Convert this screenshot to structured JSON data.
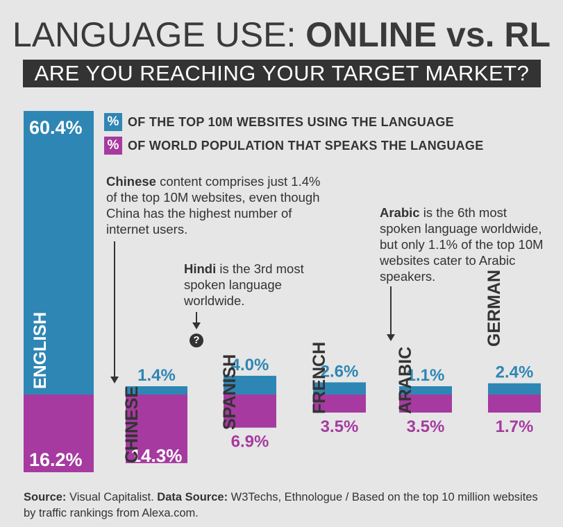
{
  "header": {
    "title_light": "LANGUAGE USE:",
    "title_bold": "ONLINE vs. RL",
    "subtitle": "ARE YOU REACHING YOUR TARGET MARKET?"
  },
  "legend": {
    "items": [
      {
        "symbol": "%",
        "text": "OF THE TOP 10M WEBSITES USING THE LANGUAGE",
        "color": "#2e86b4"
      },
      {
        "symbol": "%",
        "text": "OF WORLD POPULATION THAT SPEAKS THE LANGUAGE",
        "color": "#a63aa0"
      }
    ]
  },
  "notes": {
    "chinese": {
      "bold": "Chinese",
      "text": " content comprises just 1.4% of the top 10M websites, even though China has the highest number of internet users."
    },
    "hindi": {
      "bold": "Hindi",
      "text": " is the 3rd most spoken language worldwide."
    },
    "arabic": {
      "bold": "Arabic",
      "text": " is the 6th most spoken language worldwide, but only 1.1% of the top 10M websites cater to Arabic speakers."
    },
    "hindi_marker": "?"
  },
  "chart_data": {
    "type": "bar",
    "categories": [
      "ENGLISH",
      "CHINESE",
      "SPANISH",
      "FRENCH",
      "ARABIC",
      "GERMAN"
    ],
    "series": [
      {
        "name": "% OF THE TOP 10M WEBSITES USING THE LANGUAGE",
        "values": [
          60.4,
          1.4,
          4.0,
          2.6,
          1.1,
          2.4
        ],
        "labels": [
          "60.4%",
          "1.4%",
          "4.0%",
          "2.6%",
          "1.1%",
          "2.4%"
        ],
        "color": "#2e86b4"
      },
      {
        "name": "% OF WORLD POPULATION THAT SPEAKS THE LANGUAGE",
        "values": [
          16.2,
          14.3,
          6.9,
          3.5,
          3.5,
          1.7
        ],
        "labels": [
          "16.2%",
          "14.3%",
          "6.9%",
          "3.5%",
          "3.5%",
          "1.7%"
        ],
        "color": "#a63aa0"
      }
    ]
  },
  "source": {
    "source_label": "Source:",
    "source_text": " Visual Capitalist. ",
    "data_source_label": "Data Source:",
    "data_source_text": " W3Techs, Ethnologue / Based on the top 10 million websites by traffic rankings from Alexa.com."
  }
}
